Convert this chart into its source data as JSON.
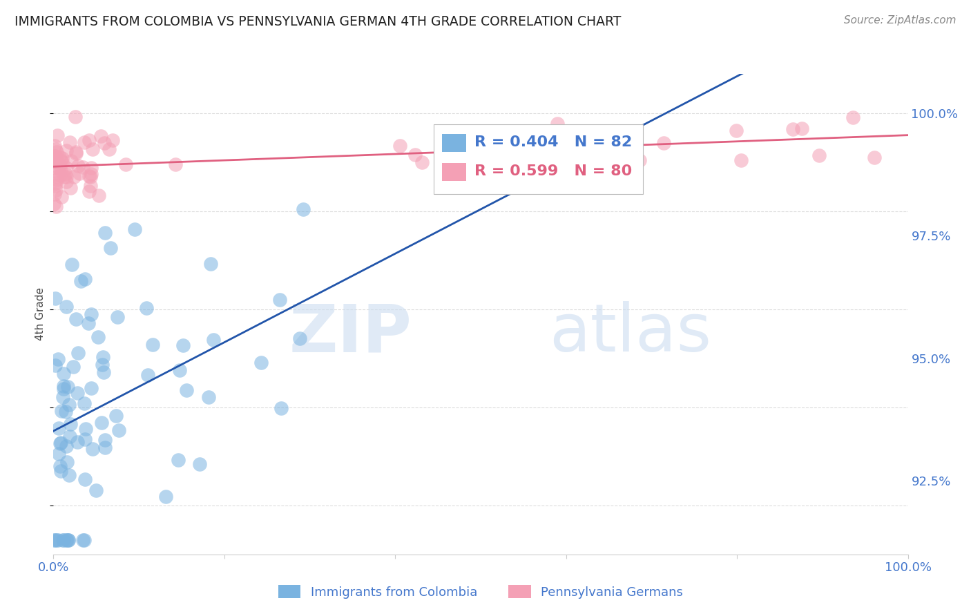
{
  "title": "IMMIGRANTS FROM COLOMBIA VS PENNSYLVANIA GERMAN 4TH GRADE CORRELATION CHART",
  "source": "Source: ZipAtlas.com",
  "ylabel": "4th Grade",
  "ylabel_right_ticks": [
    92.5,
    95.0,
    97.5,
    100.0
  ],
  "ylabel_right_labels": [
    "92.5%",
    "95.0%",
    "97.5%",
    "100.0%"
  ],
  "xmin": 0.0,
  "xmax": 100.0,
  "ymin": 91.0,
  "ymax": 100.8,
  "blue_R": 0.404,
  "blue_N": 82,
  "pink_R": 0.599,
  "pink_N": 80,
  "blue_color": "#7ab3e0",
  "pink_color": "#f4a0b5",
  "blue_line_color": "#2255aa",
  "pink_line_color": "#e06080",
  "legend_blue_label": "Immigrants from Colombia",
  "legend_pink_label": "Pennsylvania Germans",
  "watermark_zip": "ZIP",
  "watermark_atlas": "atlas",
  "background_color": "#ffffff",
  "grid_color": "#dddddd",
  "title_color": "#222222",
  "tick_color": "#4477cc",
  "source_color": "#888888"
}
